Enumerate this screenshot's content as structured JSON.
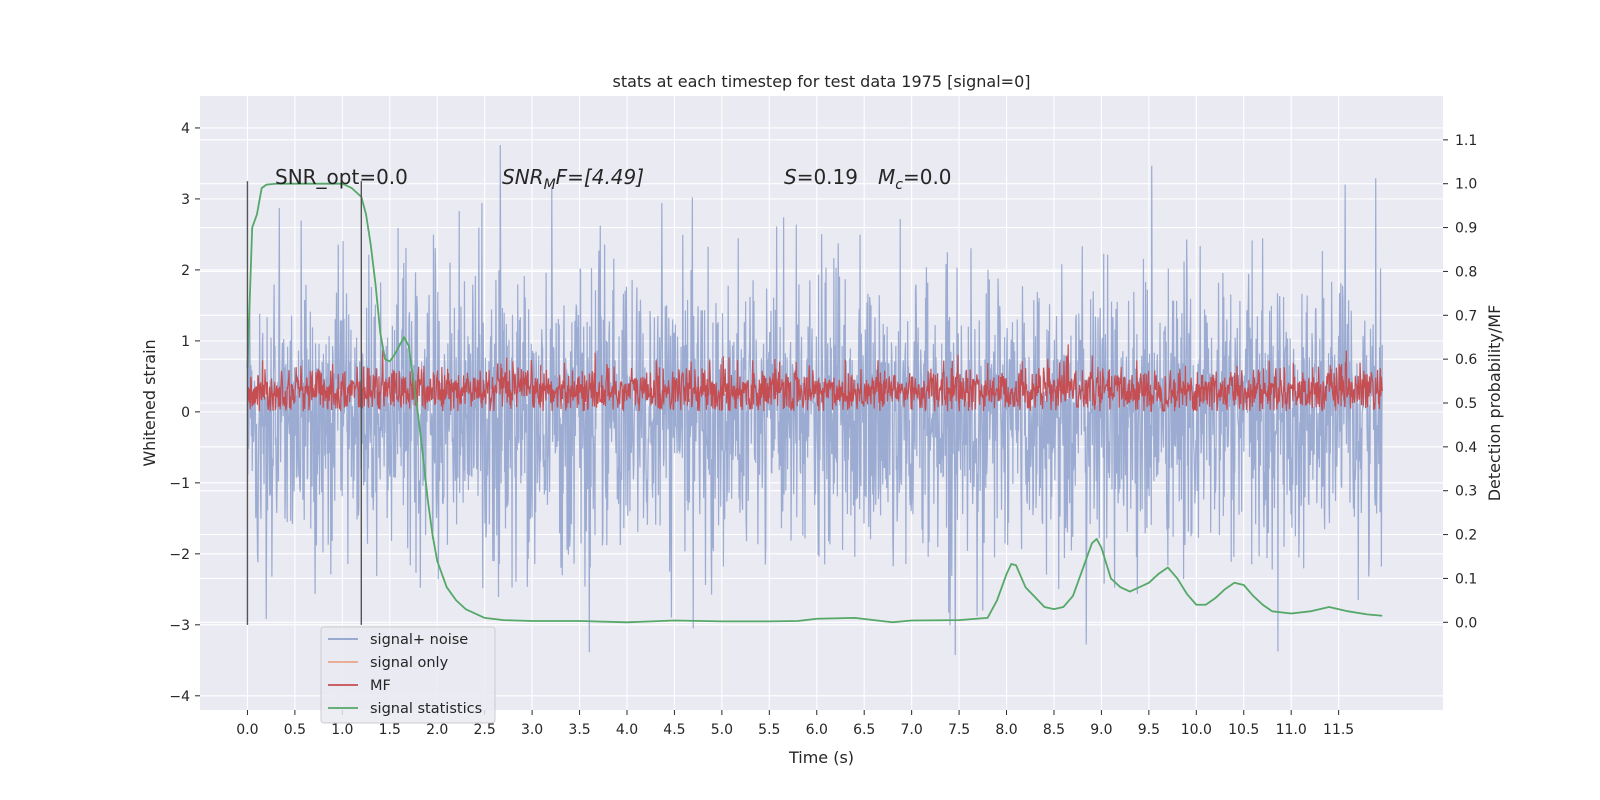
{
  "chart_data": {
    "type": "line",
    "title": "stats at each timestep for test data 1975 [signal=0]",
    "xlabel": "Time (s)",
    "ylabel_left": "Whitened strain",
    "ylabel_right": "Detection probability/MF",
    "xlim": [
      -0.5,
      12.6
    ],
    "ylim_left": [
      -4.2,
      4.45
    ],
    "ylim_right": [
      -0.2,
      1.2
    ],
    "x_ticks": [
      0.0,
      0.5,
      1.0,
      1.5,
      2.0,
      2.5,
      3.0,
      3.5,
      4.0,
      4.5,
      5.0,
      5.5,
      6.0,
      6.5,
      7.0,
      7.5,
      8.0,
      8.5,
      9.0,
      9.5,
      10.0,
      10.5,
      11.0,
      11.5
    ],
    "x_tick_labels": [
      "0.0",
      "0.5",
      "1.0",
      "1.5",
      "2.0",
      "2.5",
      "3.0",
      "3.5",
      "4.0",
      "4.5",
      "5.0",
      "5.5",
      "6.0",
      "6.5",
      "7.0",
      "7.5",
      "8.0",
      "8.5",
      "9.0",
      "9.5",
      "10.0",
      "10.5",
      "11.0",
      "11.5"
    ],
    "y_left_ticks": [
      4,
      3,
      2,
      1,
      0,
      -1,
      -2,
      -3,
      -4
    ],
    "y_left_tick_labels": [
      "4",
      "3",
      "2",
      "1",
      "0",
      "−1",
      "−2",
      "−3",
      "−4"
    ],
    "y_right_ticks": [
      1.1,
      1.0,
      0.9,
      0.8,
      0.7,
      0.6,
      0.5,
      0.4,
      0.3,
      0.2,
      0.1,
      0.0
    ],
    "y_right_tick_labels": [
      "1.1",
      "1.0",
      "0.9",
      "0.8",
      "0.7",
      "0.6",
      "0.5",
      "0.4",
      "0.3",
      "0.2",
      "0.1",
      "0.0"
    ],
    "grid": true,
    "legend_position": "lower-left",
    "annotations": {
      "snr_opt": "SNR_opt=0.0",
      "snr_mf_prefix": "SNR",
      "snr_mf_sub": "M",
      "snr_mf_suffix": "F=[4.49]",
      "s_prefix": "S",
      "s_value": "=0.19",
      "mc_prefix": "M",
      "mc_sub": "c",
      "mc_value": "=0.0"
    },
    "vertical_markers": [
      {
        "x": 0.0,
        "y_range": [
          -3.0,
          3.25
        ]
      },
      {
        "x": 1.2,
        "y_range": [
          -3.0,
          3.25
        ]
      }
    ],
    "series": [
      {
        "name": "signal+ noise",
        "color": "#8da0cb",
        "axis": "left",
        "x_range": [
          0.0,
          11.96
        ],
        "mean": -0.05,
        "std": 1.0,
        "envelope_min": -3.8,
        "envelope_max": 4.1
      },
      {
        "name": "signal only",
        "color": "#e8a68b",
        "axis": "left",
        "values": []
      },
      {
        "name": "MF",
        "color": "#c44e52",
        "axis": "left",
        "x_range": [
          0.0,
          11.96
        ],
        "envelope_min": 0.0,
        "envelope_max": 1.0
      },
      {
        "name": "signal statistics",
        "color": "#55a868",
        "axis": "right",
        "x": [
          0.0,
          0.05,
          0.1,
          0.15,
          0.2,
          0.3,
          0.5,
          0.8,
          1.0,
          1.1,
          1.2,
          1.25,
          1.3,
          1.35,
          1.4,
          1.45,
          1.5,
          1.55,
          1.6,
          1.65,
          1.7,
          1.75,
          1.8,
          1.85,
          1.9,
          1.95,
          2.0,
          2.1,
          2.2,
          2.3,
          2.5,
          2.7,
          3.0,
          3.5,
          4.0,
          4.5,
          5.0,
          5.5,
          5.8,
          6.0,
          6.4,
          6.8,
          7.0,
          7.5,
          7.8,
          7.9,
          8.0,
          8.05,
          8.1,
          8.2,
          8.4,
          8.5,
          8.6,
          8.7,
          8.8,
          8.9,
          8.95,
          9.0,
          9.1,
          9.2,
          9.3,
          9.5,
          9.6,
          9.7,
          9.8,
          9.9,
          10.0,
          10.1,
          10.2,
          10.3,
          10.4,
          10.5,
          10.6,
          10.7,
          10.8,
          11.0,
          11.2,
          11.4,
          11.6,
          11.8,
          11.96
        ],
        "values": [
          0.58,
          0.9,
          0.93,
          0.99,
          0.998,
          1.0,
          1.0,
          1.0,
          1.0,
          0.99,
          0.97,
          0.93,
          0.86,
          0.77,
          0.66,
          0.6,
          0.595,
          0.61,
          0.63,
          0.65,
          0.63,
          0.55,
          0.47,
          0.38,
          0.28,
          0.2,
          0.14,
          0.08,
          0.05,
          0.03,
          0.01,
          0.005,
          0.003,
          0.003,
          0.0,
          0.004,
          0.002,
          0.002,
          0.003,
          0.008,
          0.01,
          0.0,
          0.004,
          0.005,
          0.01,
          0.05,
          0.11,
          0.133,
          0.13,
          0.08,
          0.035,
          0.03,
          0.035,
          0.06,
          0.12,
          0.18,
          0.19,
          0.17,
          0.1,
          0.08,
          0.07,
          0.09,
          0.11,
          0.125,
          0.1,
          0.065,
          0.04,
          0.04,
          0.055,
          0.075,
          0.09,
          0.085,
          0.06,
          0.04,
          0.025,
          0.02,
          0.025,
          0.035,
          0.025,
          0.018,
          0.015
        ]
      }
    ]
  }
}
